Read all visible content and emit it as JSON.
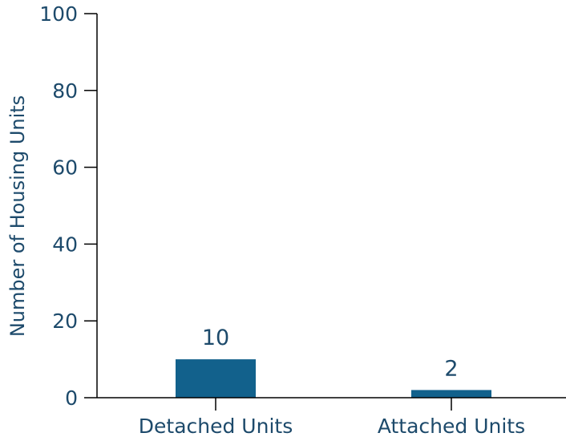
{
  "chart_data": {
    "type": "bar",
    "title": "",
    "xlabel": "",
    "ylabel": "Number of Housing Units",
    "categories": [
      "Detached Units",
      "Attached Units"
    ],
    "values": [
      10,
      2
    ],
    "data_labels": [
      "10",
      "2"
    ],
    "ylim": [
      0,
      100
    ],
    "yticks": [
      0,
      20,
      40,
      60,
      80,
      100
    ],
    "grid": false,
    "legend": "none",
    "colors": {
      "bar": "#12618c",
      "text": "#1d4a6b",
      "axis": "#000000"
    }
  }
}
